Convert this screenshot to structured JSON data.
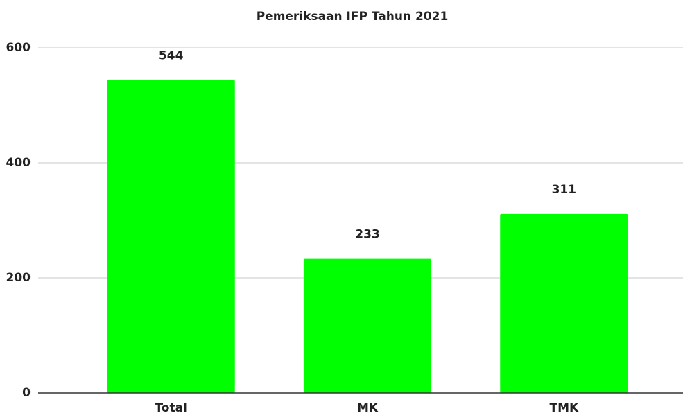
{
  "chart_data": {
    "type": "bar",
    "title": "Pemeriksaan IFP Tahun 2021",
    "categories": [
      "Total",
      "MK",
      "TMK"
    ],
    "values": [
      544,
      233,
      311
    ],
    "color": "#00ff00",
    "ylim": [
      0,
      600
    ],
    "yticks": [
      0,
      200,
      400,
      600
    ],
    "grid": true
  }
}
